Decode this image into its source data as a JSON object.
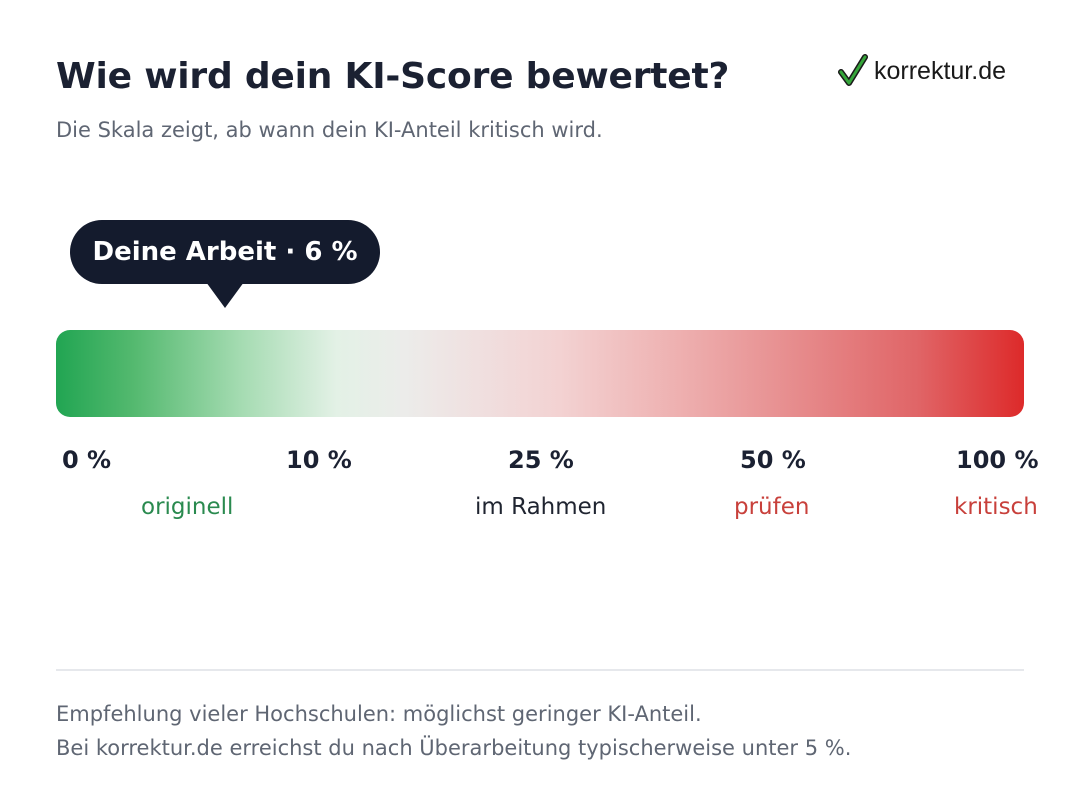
{
  "header": {
    "title": "Wie wird dein KI-Score bewertet?",
    "subtitle": "Die Skala zeigt, ab wann dein KI-Anteil kritisch wird."
  },
  "logo": {
    "icon": "checkmark-icon",
    "text": "korrektur.de",
    "check_color": "#2e8b2e"
  },
  "marker": {
    "label": "Deine Arbeit · 6 %",
    "value_percent": 6
  },
  "scale": {
    "ticks": [
      "0 %",
      "10 %",
      "25 %",
      "50 %",
      "100 %"
    ],
    "zones": [
      {
        "label": "originell",
        "color": "#2a8a4f"
      },
      {
        "label": "im Rahmen",
        "color": "#1f2430"
      },
      {
        "label": "prüfen",
        "color": "#c8403b"
      },
      {
        "label": "kritisch",
        "color": "#c8403b"
      }
    ],
    "gradient_start": "#21a552",
    "gradient_end": "#dd2a2a"
  },
  "footer": {
    "line1": "Empfehlung vieler Hochschulen: möglichst geringer KI-Anteil.",
    "line2": "Bei korrektur.de erreichst du nach Überarbeitung typischerweise unter 5 %."
  }
}
